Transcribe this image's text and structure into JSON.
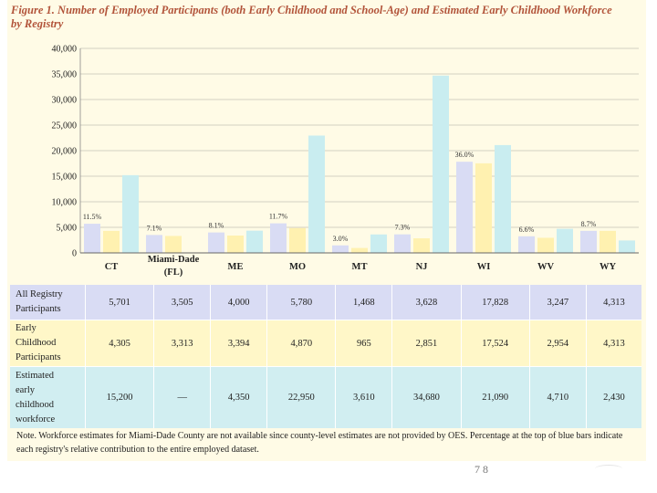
{
  "title": "Figure 1. Number of Employed Participants (both Early Childhood and School-Age) and Estimated Early Childhood Workforce by Registry",
  "chart_data": {
    "type": "bar",
    "categories": [
      "CT",
      "Miami-Dade (FL)",
      "ME",
      "MO",
      "MT",
      "NJ",
      "WI",
      "WV",
      "WY"
    ],
    "category_lines": [
      [
        "CT"
      ],
      [
        "Miami-Dade",
        "(FL)"
      ],
      [
        "ME"
      ],
      [
        "MO"
      ],
      [
        "MT"
      ],
      [
        "NJ"
      ],
      [
        "WI"
      ],
      [
        "WV"
      ],
      [
        "WY"
      ]
    ],
    "series": [
      {
        "name": "All Registry Participants",
        "values": [
          5701,
          3505,
          4000,
          5780,
          1468,
          3628,
          17828,
          3247,
          4313
        ],
        "display": [
          "5,701",
          "3,505",
          "4,000",
          "5,780",
          "1,468",
          "3,628",
          "17,828",
          "3,247",
          "4,313"
        ],
        "color": "#d9dcf4"
      },
      {
        "name": "Early Childhood Participants",
        "values": [
          4305,
          3313,
          3394,
          4870,
          965,
          2851,
          17524,
          2954,
          4313
        ],
        "display": [
          "4,305",
          "3,313",
          "3,394",
          "4,870",
          "965",
          "2,851",
          "17,524",
          "2,954",
          "4,313"
        ],
        "color": "#fff1b0"
      },
      {
        "name": "Estimated early childhood workforce",
        "values": [
          15200,
          null,
          4350,
          22950,
          3610,
          34680,
          21090,
          4710,
          2430
        ],
        "display": [
          "15,200",
          "—",
          "4,350",
          "22,950",
          "3,610",
          "34,680",
          "21,090",
          "4,710",
          "2,430"
        ],
        "color": "#c9edf0"
      }
    ],
    "percent_labels": [
      "11.5%",
      "7.1%",
      "8.1%",
      "11.7%",
      "3.0%",
      "7.3%",
      "36.0%",
      "6.6%",
      "8.7%"
    ],
    "yticks": [
      "0",
      "5,000",
      "10,000",
      "15,000",
      "20,000",
      "25,000",
      "30,000",
      "35,000",
      "40,000"
    ],
    "ylim": [
      0,
      40000
    ],
    "ystep": 5000,
    "grid": true
  },
  "table": {
    "row_labels": [
      [
        "All Registry",
        "Participants"
      ],
      [
        "Early",
        "Childhood",
        "Participants"
      ],
      [
        "Estimated",
        "early",
        "childhood",
        "workforce"
      ]
    ]
  },
  "note": "Note. Workforce estimates for Miami-Dade County are not available since county-level estimates are not provided by OES. Percentage at the top of blue bars indicate each registry's relative contribution to the entire employed dataset.",
  "page_number": "7 8"
}
